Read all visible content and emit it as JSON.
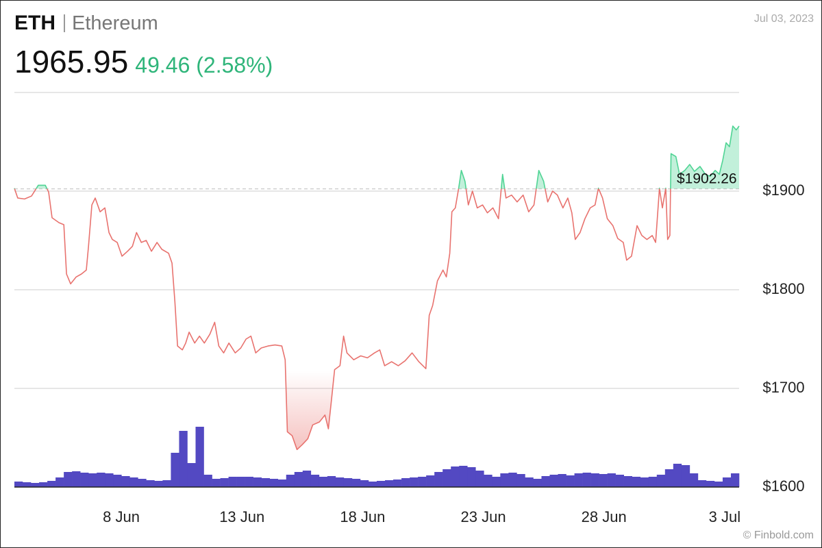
{
  "header": {
    "symbol": "ETH",
    "name": "Ethereum",
    "price": "1965.95",
    "change": "49.46 (2.58%)",
    "date": "Jul 03, 2023",
    "credit": "© Finbold.com"
  },
  "chart_data": {
    "type": "line",
    "x": [
      3.57,
      3.71,
      3.99,
      4.28,
      4.56,
      4.85,
      4.99,
      5.13,
      5.42,
      5.62,
      5.73,
      5.9,
      6.13,
      6.35,
      6.55,
      6.64,
      6.78,
      6.92,
      7.12,
      7.32,
      7.49,
      7.63,
      7.83,
      8.03,
      8.26,
      8.46,
      8.63,
      8.83,
      9.03,
      9.25,
      9.48,
      9.68,
      9.96,
      10.1,
      10.22,
      10.33,
      10.53,
      10.67,
      10.81,
      11.04,
      11.24,
      11.44,
      11.67,
      11.87,
      12.04,
      12.24,
      12.46,
      12.72,
      12.95,
      13.17,
      13.37,
      13.57,
      13.8,
      14.08,
      14.37,
      14.65,
      14.79,
      14.88,
      15.08,
      15.28,
      15.5,
      15.73,
      15.93,
      16.21,
      16.44,
      16.58,
      16.72,
      16.84,
      17.06,
      17.21,
      17.35,
      17.63,
      17.92,
      18.2,
      18.49,
      18.71,
      18.91,
      19.2,
      19.48,
      19.76,
      20.05,
      20.33,
      20.62,
      20.76,
      20.9,
      21.1,
      21.33,
      21.47,
      21.61,
      21.7,
      21.84,
      21.98,
      22.09,
      22.24,
      22.38,
      22.55,
      22.75,
      22.97,
      23.17,
      23.4,
      23.63,
      23.8,
      23.94,
      24.17,
      24.4,
      24.65,
      24.88,
      25.1,
      25.3,
      25.5,
      25.67,
      25.87,
      26.07,
      26.3,
      26.5,
      26.67,
      26.81,
      27.01,
      27.21,
      27.43,
      27.63,
      27.77,
      27.94,
      28.14,
      28.37,
      28.57,
      28.8,
      28.94,
      29.14,
      29.37,
      29.57,
      29.78,
      30.0,
      30.14,
      30.3,
      30.42,
      30.56,
      30.64,
      30.73,
      30.78,
      30.98,
      31.13,
      31.35,
      31.55,
      31.75,
      31.98,
      32.2,
      32.4,
      32.61,
      32.78,
      32.92,
      33.06,
      33.2,
      33.34,
      33.48,
      33.6
    ],
    "series": [
      {
        "color_up": "#4fd494",
        "color_down": "#e8726e",
        "values": [
          1903,
          1893,
          1892,
          1895,
          1906,
          1906,
          1899,
          1873,
          1868,
          1866,
          1816,
          1806,
          1813,
          1816,
          1820,
          1844,
          1886,
          1893,
          1879,
          1883,
          1858,
          1851,
          1848,
          1834,
          1839,
          1844,
          1858,
          1848,
          1850,
          1839,
          1848,
          1841,
          1837,
          1827,
          1788,
          1743,
          1739,
          1746,
          1757,
          1746,
          1753,
          1746,
          1755,
          1767,
          1743,
          1736,
          1746,
          1736,
          1741,
          1750,
          1753,
          1736,
          1741,
          1743,
          1744,
          1743,
          1729,
          1656,
          1652,
          1638,
          1643,
          1649,
          1663,
          1666,
          1673,
          1659,
          1691,
          1719,
          1723,
          1753,
          1736,
          1729,
          1733,
          1731,
          1736,
          1739,
          1723,
          1727,
          1723,
          1728,
          1736,
          1727,
          1720,
          1774,
          1784,
          1809,
          1820,
          1813,
          1837,
          1879,
          1883,
          1903,
          1921,
          1910,
          1886,
          1900,
          1883,
          1886,
          1878,
          1883,
          1872,
          1917,
          1893,
          1896,
          1889,
          1896,
          1879,
          1886,
          1921,
          1910,
          1889,
          1900,
          1896,
          1883,
          1893,
          1878,
          1851,
          1858,
          1872,
          1883,
          1886,
          1903,
          1893,
          1872,
          1865,
          1852,
          1848,
          1830,
          1834,
          1865,
          1855,
          1851,
          1855,
          1848,
          1903,
          1883,
          1903,
          1851,
          1855,
          1938,
          1935,
          1917,
          1921,
          1927,
          1920,
          1925,
          1917,
          1915,
          1921,
          1917,
          1931,
          1949,
          1945,
          1966,
          1962,
          1966
        ]
      }
    ],
    "reference": {
      "value": 1902.26,
      "label": "$1902.26"
    },
    "volume": {
      "color": "#5349c2",
      "values": [
        8,
        7,
        6,
        7,
        9,
        14,
        22,
        23,
        21,
        20,
        21,
        20,
        18,
        16,
        14,
        12,
        10,
        9,
        10,
        50,
        82,
        35,
        88,
        18,
        12,
        13,
        15,
        15,
        15,
        14,
        13,
        12,
        11,
        18,
        22,
        24,
        18,
        15,
        16,
        14,
        13,
        12,
        10,
        8,
        9,
        10,
        11,
        13,
        14,
        15,
        17,
        22,
        26,
        30,
        31,
        29,
        24,
        18,
        15,
        20,
        21,
        19,
        14,
        12,
        16,
        18,
        19,
        17,
        20,
        21,
        20,
        19,
        20,
        18,
        16,
        15,
        14,
        15,
        18,
        26,
        34,
        32,
        20,
        10,
        9,
        8,
        14,
        20
      ]
    },
    "y2lim": [
      0,
      100
    ],
    "xlim": [
      3.57,
      33.6
    ],
    "xticks": [
      {
        "value": 8,
        "label": "8 Jun"
      },
      {
        "value": 13,
        "label": "13 Jun"
      },
      {
        "value": 18,
        "label": "18 Jun"
      },
      {
        "value": 23,
        "label": "23 Jun"
      },
      {
        "value": 28,
        "label": "28 Jun"
      },
      {
        "value": 33,
        "label": "3 Jul"
      }
    ],
    "ylim": [
      1600,
      2000
    ],
    "yticks": [
      {
        "value": 1600,
        "label": "$1600"
      },
      {
        "value": 1700,
        "label": "$1700"
      },
      {
        "value": 1800,
        "label": "$1800"
      },
      {
        "value": 1900,
        "label": "$1900"
      }
    ],
    "grid": true
  }
}
